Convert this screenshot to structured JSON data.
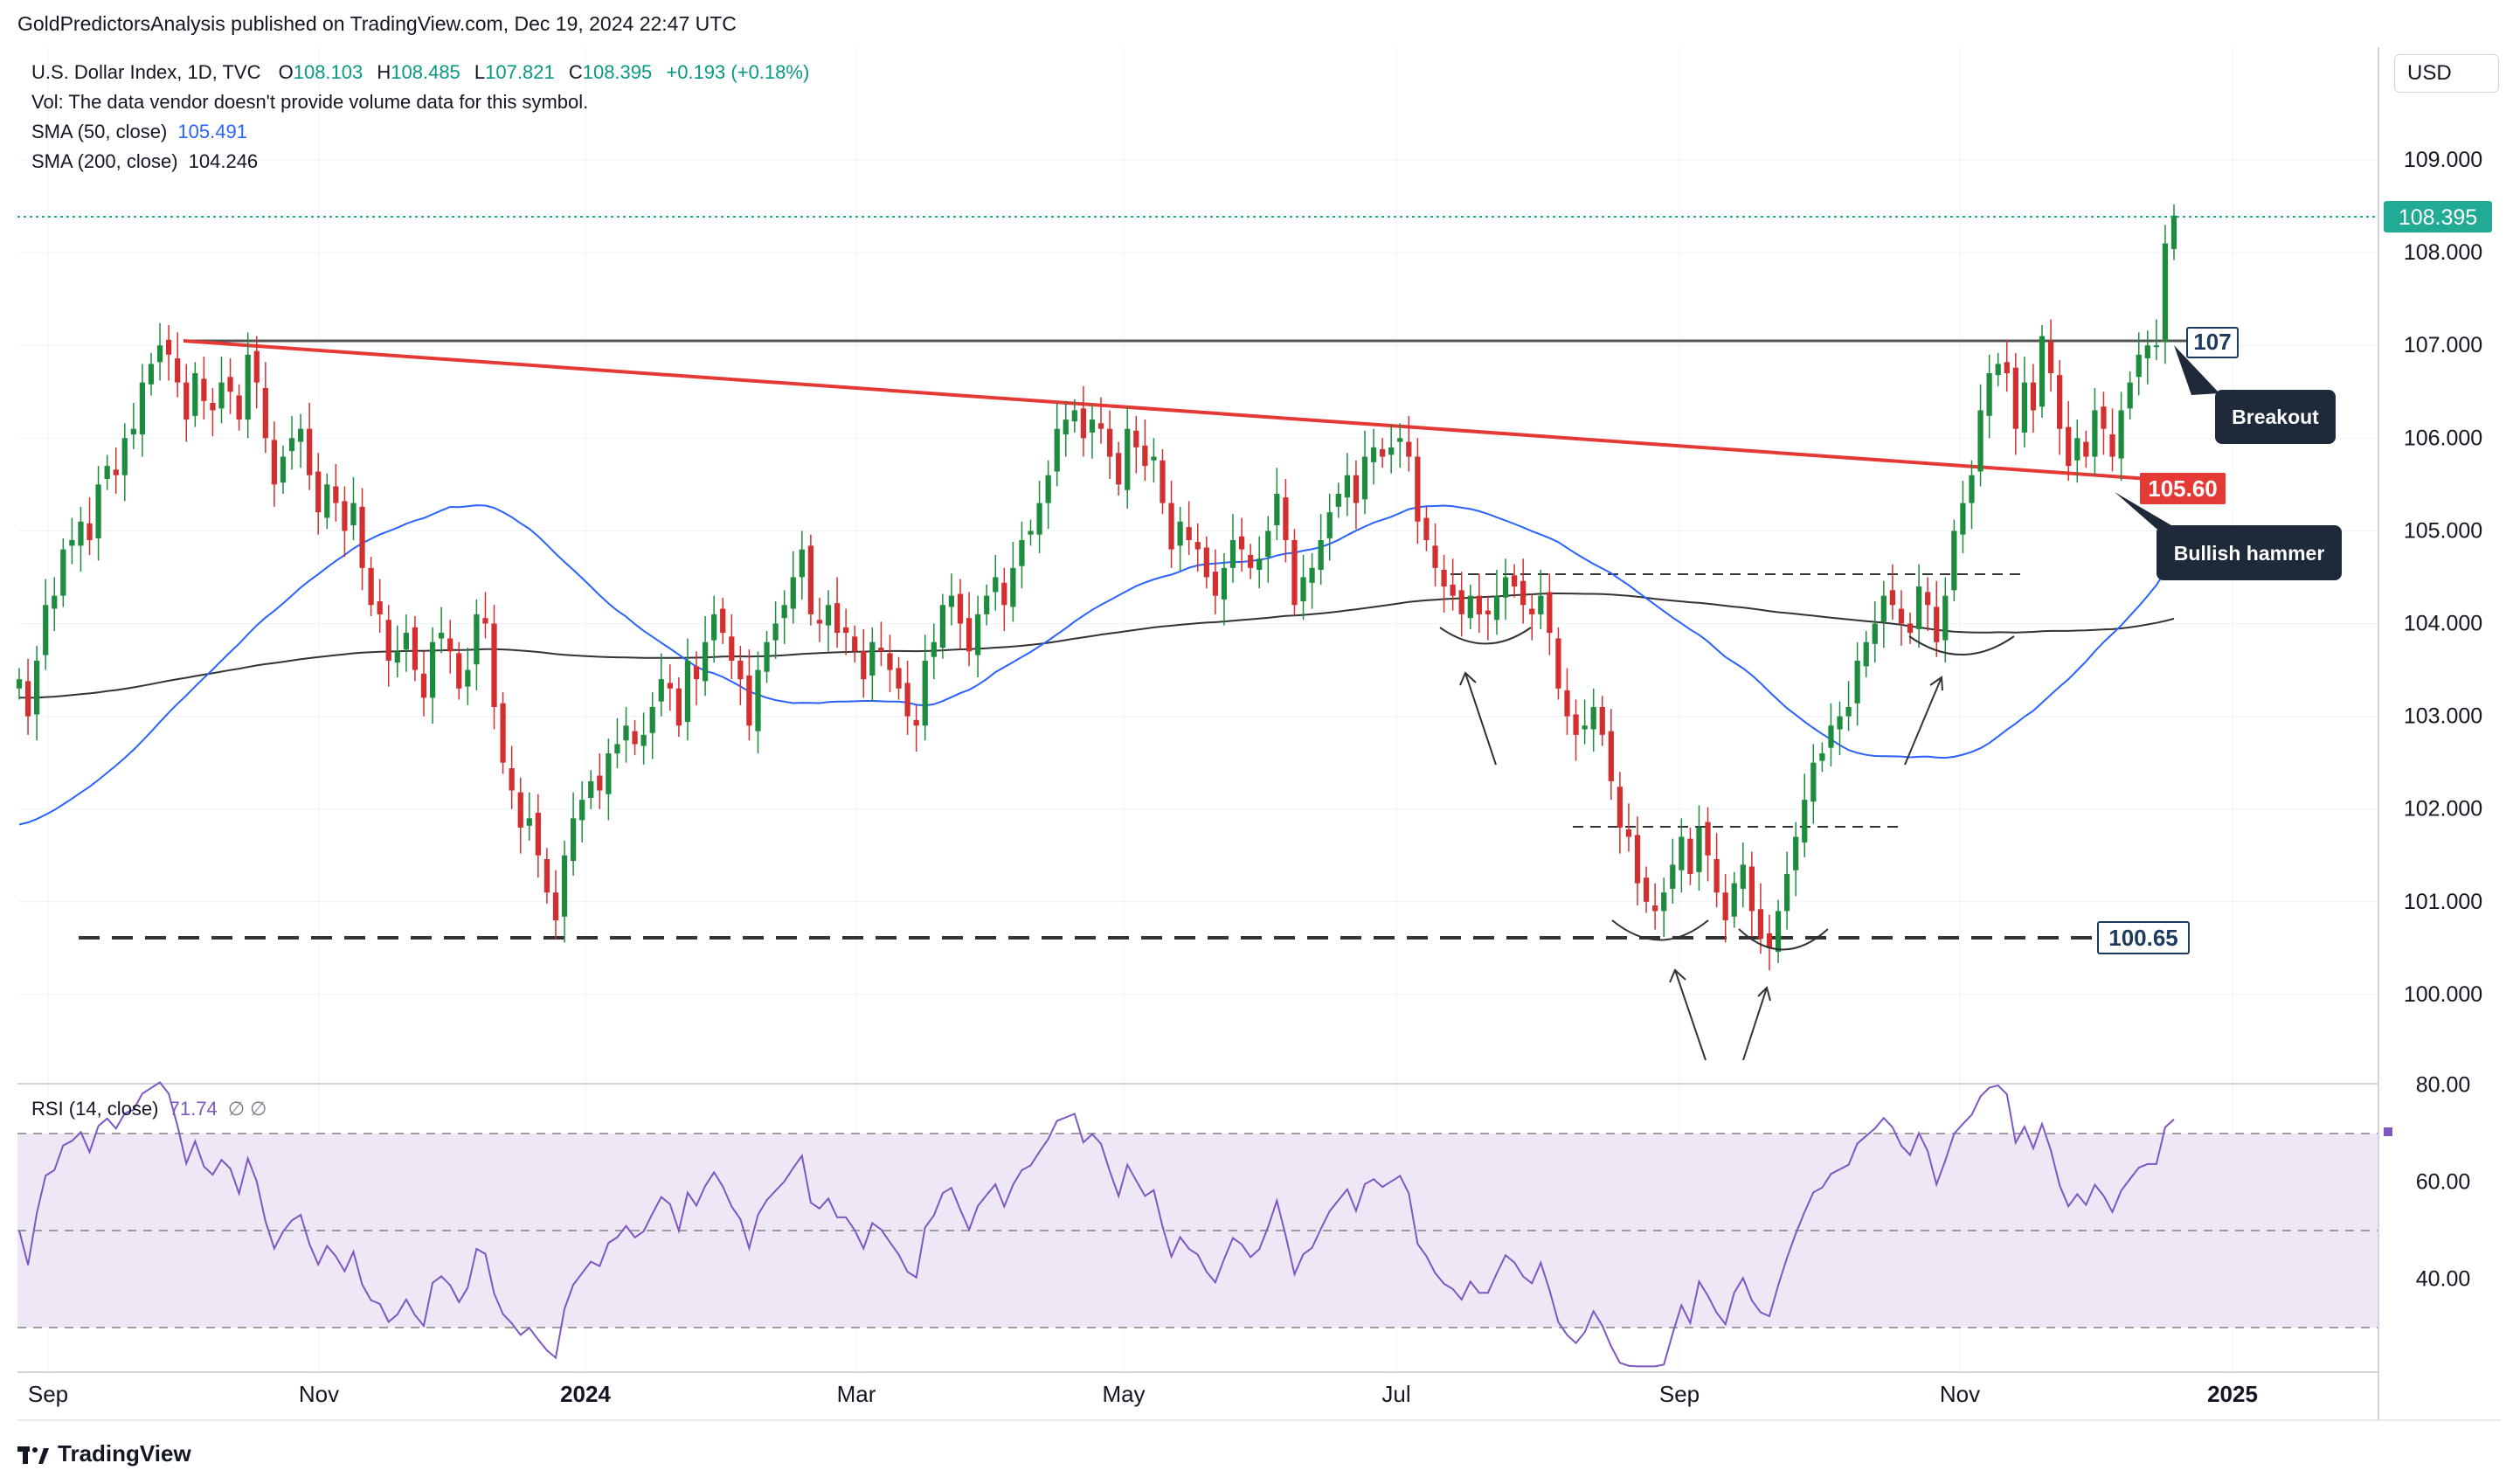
{
  "header": {
    "published": "GoldPredictorsAnalysis published on TradingView.com, Dec 19, 2024 22:47 UTC",
    "symbol": "U.S. Dollar Index, 1D, TVC",
    "o_label": "O",
    "o": "108.103",
    "h_label": "H",
    "h": "108.485",
    "l_label": "L",
    "l": "107.821",
    "c_label": "C",
    "c": "108.395",
    "change": "+0.193 (+0.18%)",
    "vol_note": "Vol: The data vendor doesn't provide volume data for this symbol.",
    "sma50_label": "SMA (50, close)",
    "sma50_value": "105.491",
    "sma200_label": "SMA (200, close)",
    "sma200_value": "104.246",
    "rsi_label": "RSI (14, close)",
    "rsi_value": "71.74",
    "rsi_extra": "∅  ∅"
  },
  "currency": "USD",
  "brand": "TradingView",
  "colors": {
    "up": "#26a69a",
    "down": "#ef5350",
    "candle_up": "#1e8c3e",
    "candle_down": "#d32f2f",
    "sma50": "#2962ff",
    "sma200": "#333333",
    "rsi": "#7e57c2",
    "rsi_band": "#ede7f6",
    "trend_red": "#e53935",
    "resistance": "#333333",
    "last_price": "#22ab94"
  },
  "chart_data": [
    {
      "type": "candlestick",
      "title": "U.S. Dollar Index, 1D, TVC",
      "x_ticks": [
        "Sep",
        "Nov",
        "2024",
        "Mar",
        "May",
        "Jul",
        "Sep",
        "Nov",
        "2025"
      ],
      "y_ticks": [
        "109.000",
        "108.000",
        "107.000",
        "106.000",
        "105.000",
        "104.000",
        "103.000",
        "102.000",
        "101.000",
        "100.000"
      ],
      "ylim": [
        99.1,
        110.2
      ],
      "last_price": "108.395",
      "levels": [
        {
          "label": "107",
          "value": 107.05
        },
        {
          "label": "105.60",
          "value": 105.6
        },
        {
          "label": "100.65",
          "value": 100.6
        }
      ],
      "annotations": [
        "Breakout",
        "Bullish hammer"
      ],
      "closes": [
        103.4,
        103.0,
        103.6,
        104.2,
        104.3,
        104.8,
        104.9,
        105.1,
        104.9,
        105.5,
        105.7,
        105.6,
        106.0,
        106.1,
        106.6,
        106.8,
        107.0,
        106.9,
        106.6,
        106.2,
        106.7,
        106.4,
        106.3,
        106.6,
        106.5,
        106.2,
        106.9,
        106.6,
        106.0,
        105.5,
        105.8,
        106.0,
        106.1,
        105.6,
        105.2,
        105.5,
        105.3,
        105.0,
        105.3,
        104.6,
        104.2,
        104.1,
        103.6,
        103.7,
        103.9,
        103.5,
        103.2,
        103.8,
        103.9,
        103.7,
        103.3,
        103.5,
        104.1,
        104.0,
        103.1,
        102.5,
        102.2,
        101.8,
        101.9,
        101.5,
        101.1,
        100.8,
        101.5,
        101.9,
        102.1,
        102.3,
        102.2,
        102.6,
        102.7,
        102.9,
        102.7,
        102.8,
        103.1,
        103.4,
        103.3,
        102.9,
        103.6,
        103.4,
        103.8,
        104.1,
        103.9,
        103.6,
        103.4,
        102.9,
        103.5,
        103.8,
        104.0,
        104.2,
        104.5,
        104.8,
        104.1,
        104.0,
        104.2,
        103.9,
        103.9,
        103.7,
        103.4,
        103.8,
        103.7,
        103.5,
        103.3,
        103.0,
        102.9,
        103.6,
        103.8,
        104.2,
        104.3,
        104.0,
        103.7,
        104.1,
        104.3,
        104.5,
        104.2,
        104.6,
        104.9,
        105.0,
        105.3,
        105.6,
        106.1,
        106.2,
        106.3,
        106.0,
        106.2,
        106.1,
        105.8,
        105.5,
        106.1,
        105.9,
        105.7,
        105.8,
        105.3,
        104.8,
        105.1,
        104.9,
        104.8,
        104.5,
        104.3,
        104.6,
        104.9,
        104.8,
        104.6,
        104.7,
        105.0,
        105.4,
        104.9,
        104.2,
        104.5,
        104.6,
        104.9,
        105.2,
        105.4,
        105.6,
        105.3,
        105.8,
        105.9,
        105.8,
        105.9,
        106.0,
        105.8,
        105.1,
        104.9,
        104.6,
        104.4,
        104.3,
        104.1,
        104.3,
        104.1,
        104.1,
        104.3,
        104.5,
        104.4,
        104.2,
        104.1,
        104.3,
        103.9,
        103.3,
        103.0,
        102.8,
        102.9,
        103.1,
        102.8,
        102.3,
        101.8,
        101.7,
        101.2,
        101.0,
        100.9,
        101.1,
        101.4,
        101.7,
        101.3,
        101.8,
        101.5,
        101.1,
        100.8,
        101.2,
        101.4,
        100.9,
        100.6,
        100.5,
        100.9,
        101.3,
        101.7,
        102.1,
        102.5,
        102.6,
        102.9,
        103.0,
        103.1,
        103.6,
        103.8,
        104.0,
        104.3,
        104.2,
        104.0,
        103.9,
        104.4,
        104.2,
        103.8,
        104.3,
        105.0,
        105.3,
        105.6,
        106.3,
        106.7,
        106.8,
        106.7,
        106.1,
        106.6,
        106.3,
        107.1,
        106.7,
        106.1,
        105.7,
        106.0,
        105.8,
        106.3,
        106.1,
        105.8,
        106.3,
        106.6,
        106.9,
        107.0,
        107.0,
        108.1,
        108.4
      ]
    },
    {
      "type": "line",
      "title": "RSI (14, close)",
      "y_ticks": [
        "80.00",
        "60.00",
        "40.00"
      ],
      "ylim": [
        22,
        82
      ],
      "band": [
        30,
        70
      ],
      "mid": 50,
      "last_value": "71.74"
    }
  ]
}
